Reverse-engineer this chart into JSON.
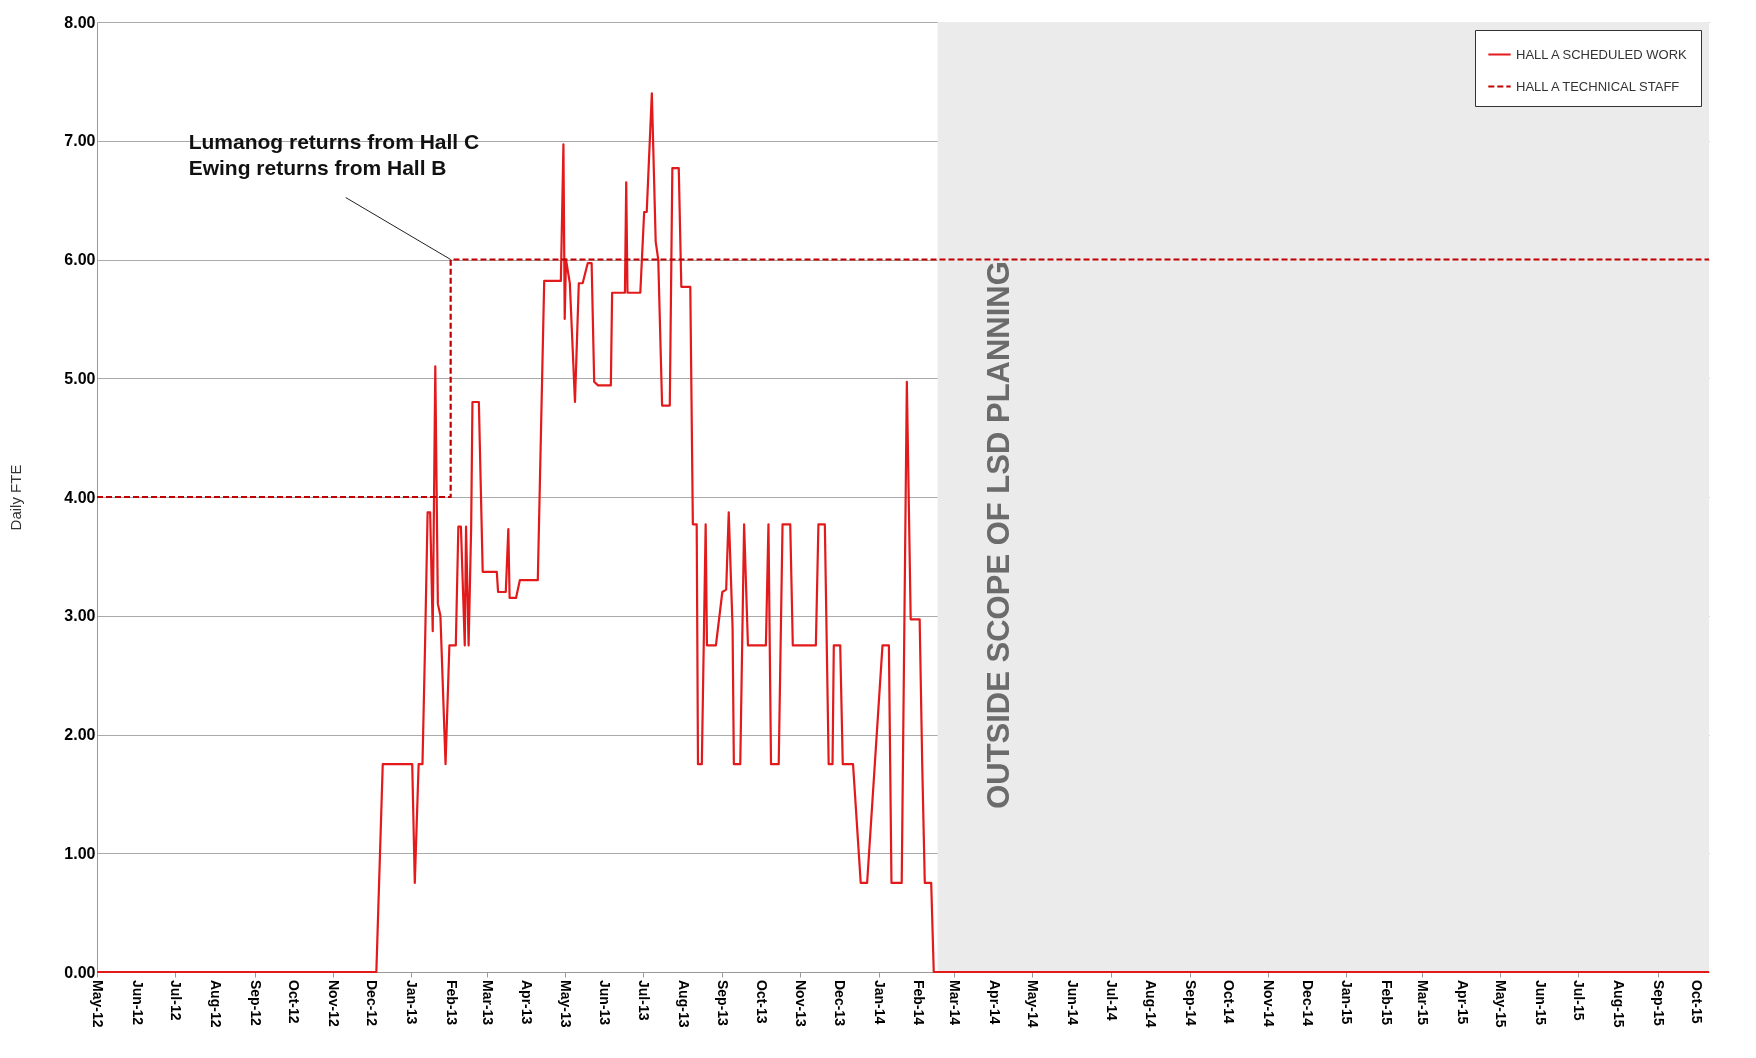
{
  "chart_data": {
    "type": "line",
    "ylabel": "Daily FTE",
    "xlim": [
      "2012-05-01",
      "2015-10-11"
    ],
    "xticks": [
      {
        "value": "2012-05-01",
        "label": "May-12"
      },
      {
        "value": "2012-06-01",
        "label": "Jun-12"
      },
      {
        "value": "2012-07-01",
        "label": "Jul-12"
      },
      {
        "value": "2012-08-01",
        "label": "Aug-12"
      },
      {
        "value": "2012-09-01",
        "label": "Sep-12"
      },
      {
        "value": "2012-10-01",
        "label": "Oct-12"
      },
      {
        "value": "2012-11-01",
        "label": "Nov-12"
      },
      {
        "value": "2012-12-01",
        "label": "Dec-12"
      },
      {
        "value": "2013-01-01",
        "label": "Jan-13"
      },
      {
        "value": "2013-02-01",
        "label": "Feb-13"
      },
      {
        "value": "2013-03-01",
        "label": "Mar-13"
      },
      {
        "value": "2013-04-01",
        "label": "Apr-13"
      },
      {
        "value": "2013-05-01",
        "label": "May-13"
      },
      {
        "value": "2013-06-01",
        "label": "Jun-13"
      },
      {
        "value": "2013-07-01",
        "label": "Jul-13"
      },
      {
        "value": "2013-08-01",
        "label": "Aug-13"
      },
      {
        "value": "2013-09-01",
        "label": "Sep-13"
      },
      {
        "value": "2013-10-01",
        "label": "Oct-13"
      },
      {
        "value": "2013-11-01",
        "label": "Nov-13"
      },
      {
        "value": "2013-12-01",
        "label": "Dec-13"
      },
      {
        "value": "2014-01-01",
        "label": "Jan-14"
      },
      {
        "value": "2014-02-01",
        "label": "Feb-14"
      },
      {
        "value": "2014-03-01",
        "label": "Mar-14"
      },
      {
        "value": "2014-04-01",
        "label": "Apr-14"
      },
      {
        "value": "2014-05-01",
        "label": "May-14"
      },
      {
        "value": "2014-06-01",
        "label": "Jun-14"
      },
      {
        "value": "2014-07-01",
        "label": "Jul-14"
      },
      {
        "value": "2014-08-01",
        "label": "Aug-14"
      },
      {
        "value": "2014-09-01",
        "label": "Sep-14"
      },
      {
        "value": "2014-10-01",
        "label": "Oct-14"
      },
      {
        "value": "2014-11-01",
        "label": "Nov-14"
      },
      {
        "value": "2014-12-01",
        "label": "Dec-14"
      },
      {
        "value": "2015-01-01",
        "label": "Jan-15"
      },
      {
        "value": "2015-02-01",
        "label": "Feb-15"
      },
      {
        "value": "2015-03-01",
        "label": "Mar-15"
      },
      {
        "value": "2015-04-01",
        "label": "Apr-15"
      },
      {
        "value": "2015-05-01",
        "label": "May-15"
      },
      {
        "value": "2015-06-01",
        "label": "Jun-15"
      },
      {
        "value": "2015-07-01",
        "label": "Jul-15"
      },
      {
        "value": "2015-08-01",
        "label": "Aug-15"
      },
      {
        "value": "2015-09-01",
        "label": "Sep-15"
      },
      {
        "value": "2015-10-01",
        "label": "Oct-15"
      }
    ],
    "ylim": [
      0,
      8
    ],
    "yticks": [
      {
        "value": 0,
        "label": "0.00"
      },
      {
        "value": 1,
        "label": "1.00"
      },
      {
        "value": 2,
        "label": "2.00"
      },
      {
        "value": 3,
        "label": "3.00"
      },
      {
        "value": 4,
        "label": "4.00"
      },
      {
        "value": 5,
        "label": "5.00"
      },
      {
        "value": 6,
        "label": "6.00"
      },
      {
        "value": 7,
        "label": "7.00"
      },
      {
        "value": 8,
        "label": "8.00"
      }
    ],
    "grid": "y",
    "legend": "top right",
    "marker": "none",
    "series": [
      {
        "name": "HALL A SCHEDULED WORK",
        "color": "#e31a1c",
        "line_style": "solid",
        "x": [
          "2012-05-01",
          "2012-12-05",
          "2012-12-10",
          "2013-01-02",
          "2013-01-04",
          "2013-01-07",
          "2013-01-10",
          "2013-01-12",
          "2013-01-14",
          "2013-01-16",
          "2013-01-18",
          "2013-01-20",
          "2013-01-22",
          "2013-01-24",
          "2013-01-28",
          "2013-01-31",
          "2013-02-05",
          "2013-02-07",
          "2013-02-09",
          "2013-02-12",
          "2013-02-13",
          "2013-02-15",
          "2013-02-17",
          "2013-02-18",
          "2013-02-23",
          "2013-02-26",
          "2013-03-09",
          "2013-03-10",
          "2013-03-16",
          "2013-03-18",
          "2013-03-19",
          "2013-03-24",
          "2013-03-27",
          "2013-04-10",
          "2013-04-15",
          "2013-04-28",
          "2013-04-30",
          "2013-05-01",
          "2013-05-02",
          "2013-05-05",
          "2013-05-09",
          "2013-05-12",
          "2013-05-15",
          "2013-05-19",
          "2013-05-22",
          "2013-05-24",
          "2013-05-27",
          "2013-06-06",
          "2013-06-07",
          "2013-06-17",
          "2013-06-18",
          "2013-06-19",
          "2013-06-29",
          "2013-07-02",
          "2013-07-04",
          "2013-07-08",
          "2013-07-11",
          "2013-07-13",
          "2013-07-16",
          "2013-07-22",
          "2013-07-24",
          "2013-07-29",
          "2013-07-31",
          "2013-08-07",
          "2013-08-09",
          "2013-08-12",
          "2013-08-13",
          "2013-08-16",
          "2013-08-19",
          "2013-08-20",
          "2013-08-27",
          "2013-09-01",
          "2013-09-04",
          "2013-09-06",
          "2013-09-09",
          "2013-09-10",
          "2013-09-15",
          "2013-09-18",
          "2013-09-21",
          "2013-10-05",
          "2013-10-07",
          "2013-10-09",
          "2013-10-15",
          "2013-10-18",
          "2013-10-24",
          "2013-10-26",
          "2013-11-13",
          "2013-11-15",
          "2013-11-20",
          "2013-11-23",
          "2013-11-26",
          "2013-11-27",
          "2013-12-02",
          "2013-12-04",
          "2013-12-12",
          "2013-12-18",
          "2013-12-23",
          "2014-01-04",
          "2014-01-09",
          "2014-01-11",
          "2014-01-19",
          "2014-01-23",
          "2014-01-26",
          "2014-02-02",
          "2014-02-04",
          "2014-02-06",
          "2014-02-11",
          "2014-02-13",
          "2015-10-11"
        ],
        "values": [
          0,
          0,
          1.75,
          1.75,
          0.75,
          1.75,
          1.75,
          2.75,
          3.87,
          3.87,
          2.87,
          5.1,
          3.1,
          3.0,
          1.75,
          2.75,
          2.75,
          3.75,
          3.75,
          2.75,
          3.75,
          2.75,
          3.75,
          4.8,
          4.8,
          3.37,
          3.37,
          3.2,
          3.2,
          3.73,
          3.15,
          3.15,
          3.3,
          3.3,
          5.82,
          5.82,
          6.97,
          5.5,
          6.0,
          5.8,
          4.8,
          5.8,
          5.8,
          5.97,
          5.97,
          4.97,
          4.94,
          4.94,
          5.72,
          5.72,
          6.65,
          5.72,
          5.72,
          6.4,
          6.4,
          7.4,
          6.15,
          6.0,
          4.77,
          4.77,
          6.77,
          6.77,
          5.77,
          5.77,
          3.77,
          3.77,
          1.75,
          1.75,
          3.77,
          2.75,
          2.75,
          3.2,
          3.22,
          3.87,
          2.9,
          1.75,
          1.75,
          3.77,
          2.75,
          2.75,
          3.77,
          1.75,
          1.75,
          3.77,
          3.77,
          2.75,
          2.75,
          3.77,
          3.77,
          1.75,
          1.75,
          2.75,
          2.75,
          1.75,
          1.75,
          0.75,
          0.75,
          2.75,
          2.75,
          0.75,
          0.75,
          4.97,
          2.97,
          2.97,
          1.75,
          0.75,
          0.75,
          0,
          0
        ]
      },
      {
        "name": "HALL A  TECHNICAL STAFF",
        "type": "step",
        "color": "#c00000",
        "line_style": "dashed",
        "x": [
          "2012-05-01",
          "2013-02-01",
          "2015-10-11"
        ],
        "values": [
          4,
          6,
          6
        ]
      }
    ],
    "bands": [
      {
        "axis": "x",
        "from": "2014-02-16",
        "to": "2015-10-11",
        "label": "OUTSIDE SCOPE OF LSD PLANNING",
        "color": "#ebebeb"
      }
    ],
    "annotations": [
      {
        "text": "Lumanog returns from Hall C\nEwing returns from Hall B",
        "x": "2013-02-01",
        "y": 6
      }
    ]
  }
}
